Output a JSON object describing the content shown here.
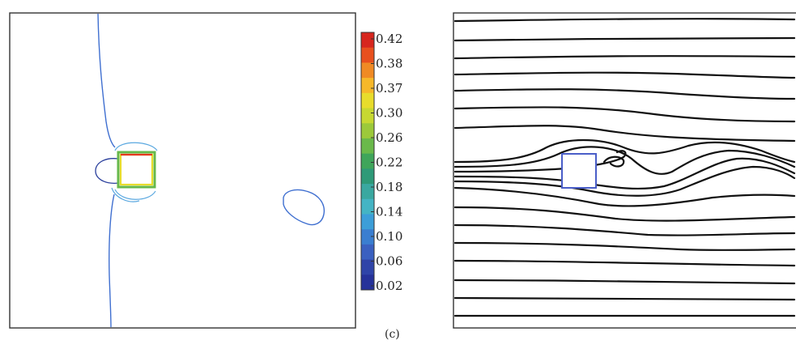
{
  "figure": {
    "caption": "(c)"
  },
  "contour_panel": {
    "colorbar": {
      "ticks": [
        "0.42",
        "0.38",
        "0.37",
        "0.30",
        "0.26",
        "0.22",
        "0.18",
        "0.14",
        "0.10",
        "0.06",
        "0.02"
      ],
      "colors": [
        "#d7261e",
        "#e8501e",
        "#f08a24",
        "#f6b82a",
        "#e8dc2c",
        "#c7d832",
        "#9cc93a",
        "#6ab94a",
        "#3fa55a",
        "#2e9a78",
        "#3aa8a0",
        "#44b4c4",
        "#3c9ed8",
        "#3a7ed0",
        "#3a60c0",
        "#2f44a8",
        "#26329a"
      ]
    }
  },
  "streamline_panel": {
    "line_color": "#111111",
    "obstacle_color": "#4a5ec8"
  }
}
